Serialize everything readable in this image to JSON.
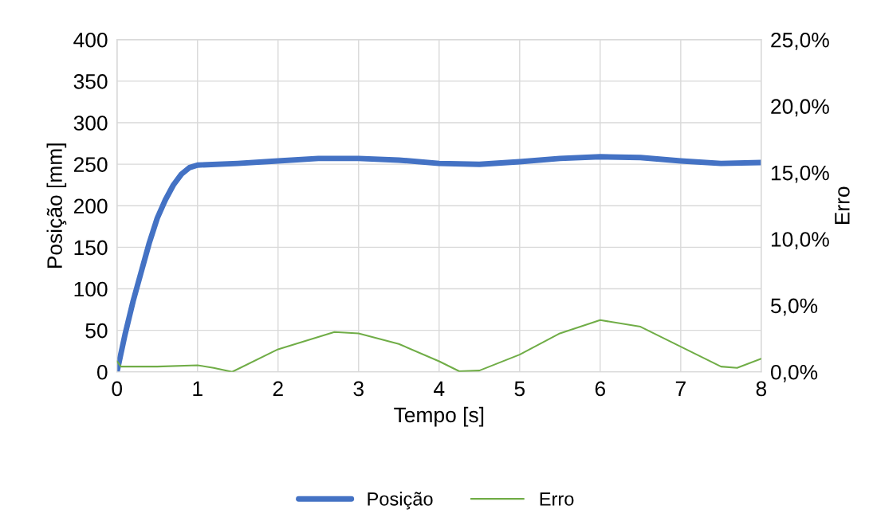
{
  "chart_data": {
    "type": "line",
    "xlabel": "Tempo [s]",
    "ylabel": "Posição [mm]",
    "y2label": "Erro",
    "xlim": [
      0,
      8
    ],
    "xticks": [
      0,
      1,
      2,
      3,
      4,
      5,
      6,
      7,
      8
    ],
    "ylim": [
      0,
      400
    ],
    "yticks": [
      0,
      50,
      100,
      150,
      200,
      250,
      300,
      350,
      400
    ],
    "y2lim": [
      0,
      25
    ],
    "y2ticks": [
      {
        "value": 0,
        "label": "0,0%"
      },
      {
        "value": 5,
        "label": "5,0%"
      },
      {
        "value": 10,
        "label": "10,0%"
      },
      {
        "value": 15,
        "label": "15,0%"
      },
      {
        "value": 20,
        "label": "20,0%"
      },
      {
        "value": 25,
        "label": "25,0%"
      }
    ],
    "grid": true,
    "legend": "bottom",
    "marker": "none",
    "line_style": "solid",
    "series": [
      {
        "name": "Posição",
        "color": "#4472c4",
        "x": [
          0,
          0.1,
          0.2,
          0.3,
          0.4,
          0.5,
          0.6,
          0.7,
          0.8,
          0.9,
          1.0,
          1.5,
          2,
          2.5,
          3,
          3.5,
          4,
          4.5,
          5,
          5.5,
          6,
          6.5,
          7,
          7.5,
          8
        ],
        "values": [
          0,
          45,
          85,
          120,
          155,
          185,
          207,
          225,
          238,
          246,
          249,
          251,
          254,
          257,
          257,
          255,
          251,
          250,
          253,
          257,
          259,
          258,
          254,
          251,
          252
        ]
      },
      {
        "name": "Erro",
        "color": "#70ad47",
        "axis": "y2",
        "x": [
          0,
          0.05,
          0.5,
          1.0,
          1.2,
          1.43,
          2,
          2.7,
          3,
          3.5,
          4,
          4.25,
          4.5,
          5,
          5.5,
          6,
          6.5,
          7,
          7.5,
          7.7,
          8
        ],
        "values": [
          0.8,
          0.4,
          0.4,
          0.5,
          0.3,
          0,
          1.7,
          3.0,
          2.9,
          2.1,
          0.8,
          0.05,
          0.1,
          1.3,
          2.9,
          3.9,
          3.4,
          1.9,
          0.4,
          0.3,
          1.0
        ]
      }
    ]
  }
}
